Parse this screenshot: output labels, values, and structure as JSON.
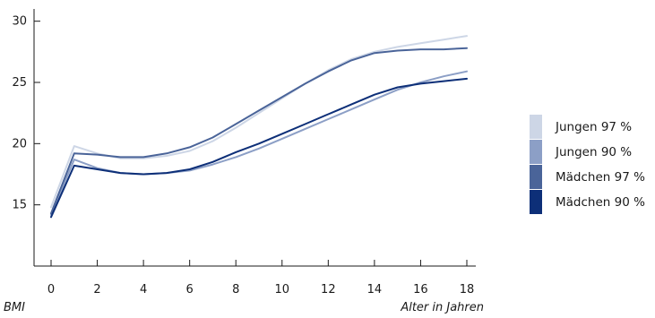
{
  "chart_data": {
    "type": "line",
    "ylabel": "BMI",
    "xlabel": "Alter in Jahren",
    "xlim": [
      0,
      18
    ],
    "ylim": [
      10,
      31
    ],
    "x_ticks": [
      "0",
      "2",
      "4",
      "6",
      "8",
      "10",
      "12",
      "14",
      "16",
      "18"
    ],
    "y_ticks": [
      "15",
      "20",
      "25",
      "30"
    ],
    "x": [
      0,
      1,
      2,
      3,
      4,
      5,
      6,
      7,
      8,
      9,
      10,
      11,
      12,
      13,
      14,
      15,
      16,
      17,
      18
    ],
    "series": [
      {
        "name": "Jungen 97 %",
        "color": "#cdd6e6",
        "values": [
          14.8,
          19.8,
          19.2,
          18.8,
          18.8,
          19.0,
          19.4,
          20.2,
          21.3,
          22.5,
          23.7,
          24.9,
          26.0,
          26.9,
          27.5,
          27.9,
          28.2,
          28.5,
          28.8
        ]
      },
      {
        "name": "Jungen 90 %",
        "color": "#8c9fc6",
        "values": [
          14.2,
          18.7,
          18.0,
          17.6,
          17.5,
          17.6,
          17.8,
          18.3,
          18.9,
          19.6,
          20.4,
          21.2,
          22.0,
          22.8,
          23.6,
          24.4,
          25.0,
          25.5,
          25.9
        ]
      },
      {
        "name": "Mädchen 97 %",
        "color": "#4a6499",
        "values": [
          14.3,
          19.2,
          19.1,
          18.9,
          18.9,
          19.2,
          19.7,
          20.5,
          21.6,
          22.7,
          23.8,
          24.9,
          25.9,
          26.8,
          27.4,
          27.6,
          27.7,
          27.7,
          27.8
        ]
      },
      {
        "name": "Mädchen 90 %",
        "color": "#0d2f78",
        "values": [
          14.0,
          18.2,
          17.9,
          17.6,
          17.5,
          17.6,
          17.9,
          18.5,
          19.3,
          20.0,
          20.8,
          21.6,
          22.4,
          23.2,
          24.0,
          24.6,
          24.9,
          25.1,
          25.3
        ]
      }
    ]
  }
}
